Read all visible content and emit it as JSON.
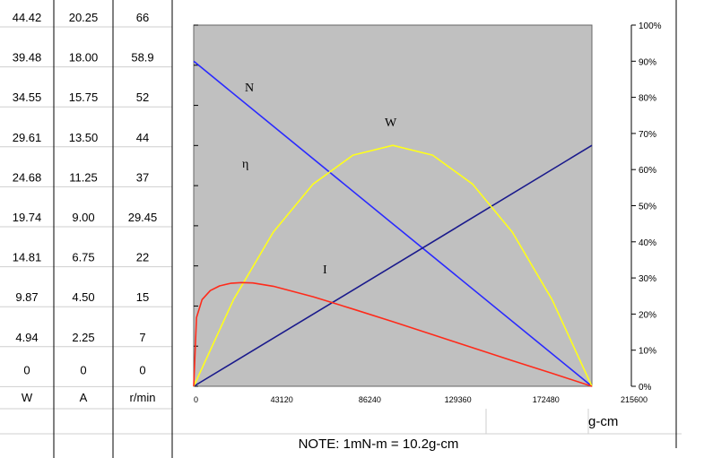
{
  "table": {
    "columns": [
      {
        "unit": "W",
        "values": [
          "44.42",
          "39.48",
          "34.55",
          "29.61",
          "24.68",
          "19.74",
          "14.81",
          "9.87",
          "4.94",
          "0"
        ]
      },
      {
        "unit": "A",
        "values": [
          "20.25",
          "18.00",
          "15.75",
          "13.50",
          "11.25",
          "9.00",
          "6.75",
          "4.50",
          "2.25",
          "0"
        ]
      },
      {
        "unit": "r/min",
        "values": [
          "66",
          "58.9",
          "52",
          "44",
          "37",
          "29.45",
          "22",
          "15",
          "7",
          "0"
        ]
      }
    ]
  },
  "note": "NOTE: 1mN-m = 10.2g-cm",
  "chart_data": {
    "type": "line",
    "xlabel": "g-cm",
    "x_ticks": [
      "0",
      "43120",
      "86240",
      "129360",
      "172480",
      "215600"
    ],
    "xlim": [
      0,
      215600
    ],
    "ylim_right": [
      0,
      100
    ],
    "y2_ticks": [
      "0%",
      "10%",
      "20%",
      "30%",
      "40%",
      "50%",
      "60%",
      "70%",
      "80%",
      "90%",
      "100%"
    ],
    "background": "#c0c0c0",
    "series": [
      {
        "name": "N",
        "color": "#2a2aff",
        "x": [
          0,
          107800,
          215600
        ],
        "y": [
          90,
          45,
          0
        ]
      },
      {
        "name": "I",
        "color": "#1a1a8c",
        "x": [
          0,
          107800,
          215600
        ],
        "y": [
          0,
          33.3,
          66.7
        ]
      },
      {
        "name": "W",
        "color": "#ffff1a",
        "x": [
          0,
          21560,
          43120,
          64680,
          86240,
          107800,
          129360,
          150920,
          172480,
          194040,
          215600
        ],
        "y": [
          0,
          24,
          42.7,
          56,
          64,
          66.7,
          64,
          56,
          42.7,
          24,
          0
        ]
      },
      {
        "name": "η",
        "color": "#ff2a1a",
        "x": [
          0,
          1500,
          4500,
          9000,
          14000,
          20000,
          26000,
          32000,
          43120,
          64680,
          86240,
          107800,
          129360,
          150920,
          172480,
          194040,
          215600
        ],
        "y": [
          0,
          19,
          24,
          26.5,
          27.8,
          28.5,
          28.7,
          28.6,
          27.7,
          24.8,
          21.4,
          17.9,
          14.3,
          10.7,
          7.1,
          3.6,
          0
        ]
      }
    ]
  }
}
